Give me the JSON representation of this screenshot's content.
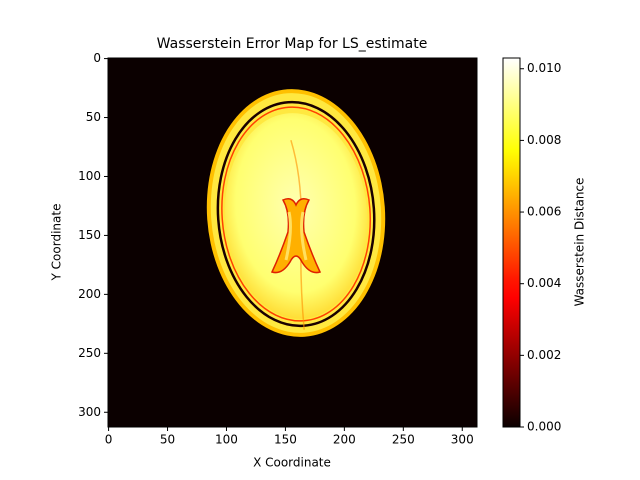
{
  "chart_data": {
    "type": "heatmap",
    "title": "Wasserstein Error Map for LS_estimate",
    "xlabel": "X Coordinate",
    "ylabel": "Y Coordinate",
    "xlim": [
      -0.5,
      312.5
    ],
    "ylim": [
      312.5,
      -0.5
    ],
    "xticks": [
      0,
      50,
      100,
      150,
      200,
      250,
      300
    ],
    "yticks": [
      0,
      50,
      100,
      150,
      200,
      250,
      300
    ],
    "colormap": "hot",
    "colorbar_label": "Wasserstein Distance",
    "clim": [
      0,
      0.0103
    ],
    "colorbar_ticks": [
      {
        "value": 0,
        "label": "0.000"
      },
      {
        "value": 0.002,
        "label": "0.002"
      },
      {
        "value": 0.004,
        "label": "0.004"
      },
      {
        "value": 0.006,
        "label": "0.006"
      },
      {
        "value": 0.008,
        "label": "0.008"
      },
      {
        "value": 0.01,
        "label": "0.010"
      }
    ]
  }
}
